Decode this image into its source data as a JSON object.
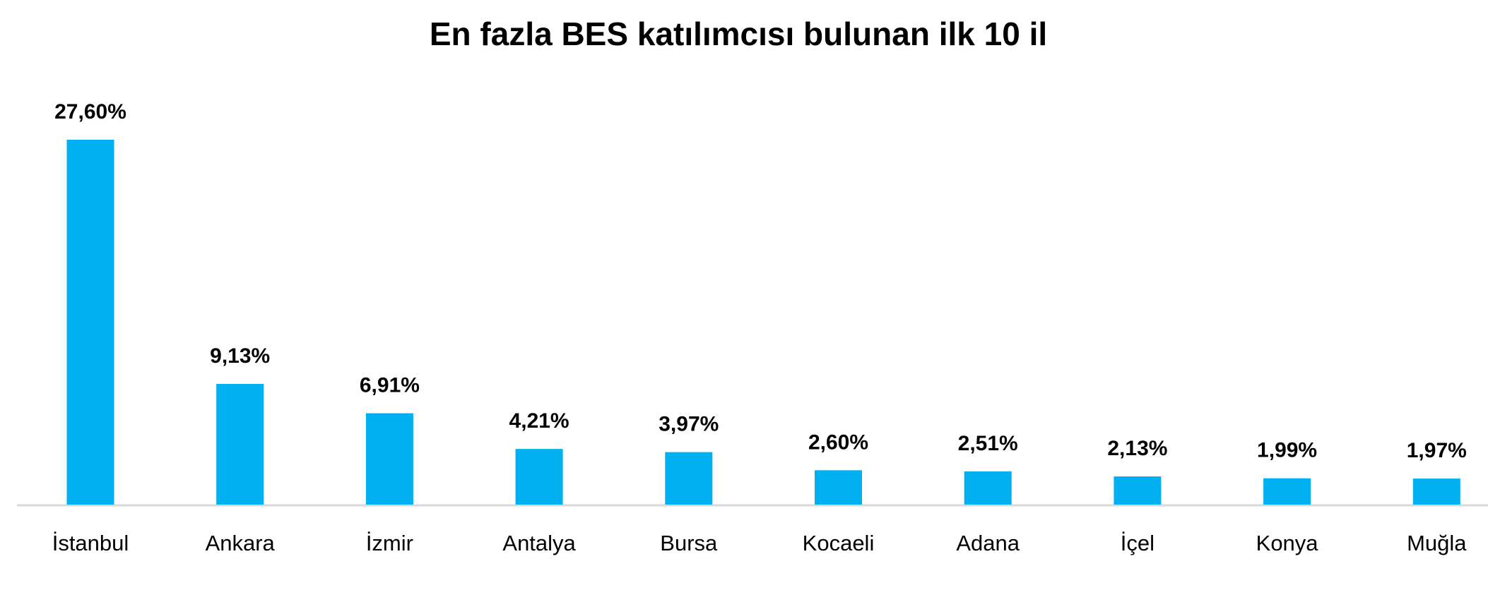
{
  "chart_data": {
    "type": "bar",
    "title": "En fazla BES katılımcısı bulunan ilk 10 il",
    "categories": [
      "İstanbul",
      "Ankara",
      "İzmir",
      "Antalya",
      "Bursa",
      "Kocaeli",
      "Adana",
      "İçel",
      "Konya",
      "Muğla"
    ],
    "values": [
      27.6,
      9.13,
      6.91,
      4.21,
      3.97,
      2.6,
      2.51,
      2.13,
      1.99,
      1.97
    ],
    "value_labels": [
      "27,60%",
      "9,13%",
      "6,91%",
      "4,21%",
      "3,97%",
      "2,60%",
      "2,51%",
      "2,13%",
      "1,99%",
      "1,97%"
    ],
    "color": "#00b0f0"
  }
}
